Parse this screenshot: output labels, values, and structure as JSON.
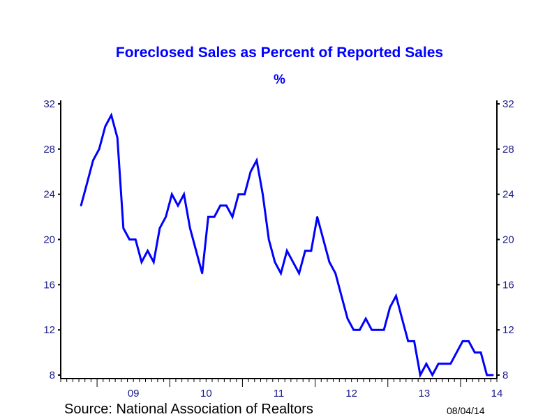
{
  "chart_data": {
    "type": "line",
    "title": "Foreclosed Sales as Percent of Reported Sales",
    "ylabel": "%",
    "source": "Source:  National Association of Realtors",
    "date_stamp": "08/04/14",
    "ylim": [
      8,
      32
    ],
    "yticks": [
      8,
      12,
      16,
      20,
      24,
      28,
      32
    ],
    "ytick_labels": [
      "8",
      "12",
      "16",
      "20",
      "24",
      "28",
      "32"
    ],
    "xlim": [
      "2008-07",
      "2014-07"
    ],
    "xtick_labels": [
      "09",
      "10",
      "11",
      "12",
      "13",
      "14"
    ],
    "x_start": "2008-10",
    "x_frequency": "monthly",
    "grid": false,
    "line_color": "#0000ff",
    "series": [
      {
        "name": "Foreclosed Sales % of Reported Sales",
        "values": [
          23,
          25,
          27,
          28,
          30,
          31,
          29,
          21,
          20,
          20,
          18,
          19,
          18,
          21,
          22,
          24,
          23,
          24,
          21,
          19,
          17,
          22,
          22,
          23,
          23,
          22,
          24,
          24,
          26,
          27,
          24,
          20,
          18,
          17,
          19,
          18,
          17,
          19,
          19,
          22,
          20,
          18,
          17,
          15,
          13,
          12,
          12,
          13,
          12,
          12,
          12,
          14,
          15,
          13,
          11,
          11,
          8,
          9,
          8,
          9,
          9,
          9,
          10,
          11,
          11,
          10,
          10,
          8,
          8
        ]
      }
    ]
  }
}
